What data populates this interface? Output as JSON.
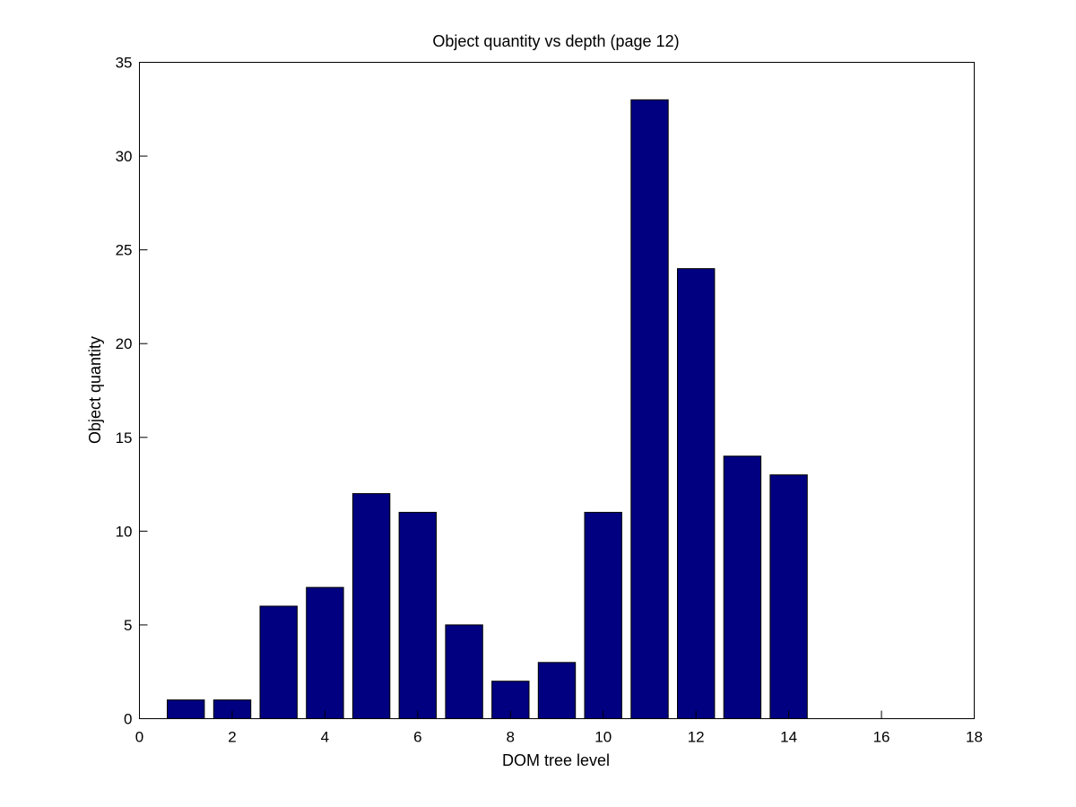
{
  "chart_data": {
    "type": "bar",
    "title": "Object quantity vs depth (page 12)",
    "xlabel": "DOM tree level",
    "ylabel": "Object quantity",
    "x": [
      1,
      2,
      3,
      4,
      5,
      6,
      7,
      8,
      9,
      10,
      11,
      12,
      13,
      14
    ],
    "values": [
      1,
      1,
      6,
      7,
      12,
      11,
      5,
      2,
      3,
      11,
      33,
      24,
      14,
      13
    ],
    "xlim": [
      0,
      18
    ],
    "ylim": [
      0,
      35
    ],
    "xticks": [
      0,
      2,
      4,
      6,
      8,
      10,
      12,
      14,
      16,
      18
    ],
    "yticks": [
      0,
      5,
      10,
      15,
      20,
      25,
      30,
      35
    ],
    "bar_width": 0.8,
    "bar_color": "#000080",
    "grid": false,
    "legend": "none"
  }
}
